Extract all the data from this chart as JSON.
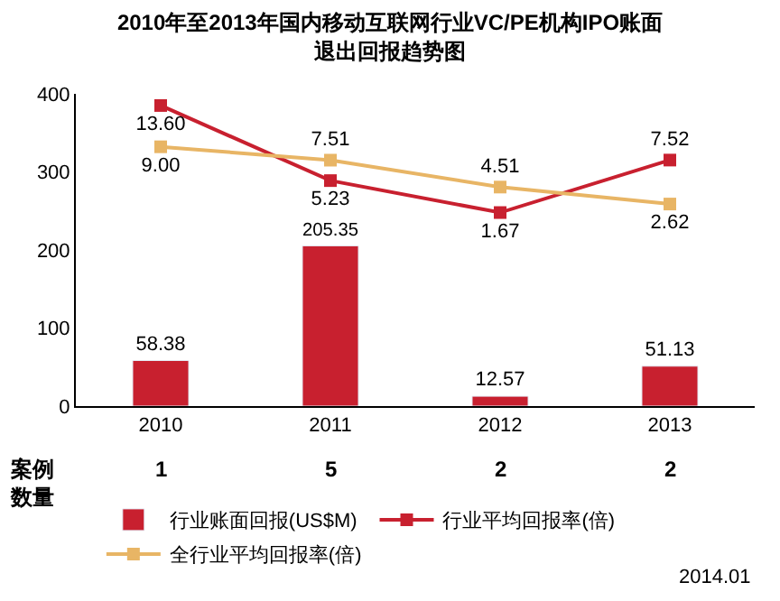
{
  "chart_data": {
    "type": "bar",
    "title": "2010年至2013年国内移动互联网行业VC/PE机构IPO账面退出回报趋势图",
    "categories": [
      "2010",
      "2011",
      "2012",
      "2013"
    ],
    "series": [
      {
        "name": "行业账面回报(US$M)",
        "color": "#c8202f",
        "values": [
          58.38,
          205.35,
          12.57,
          51.13
        ]
      },
      {
        "name": "行业平均回报率(倍)",
        "type": "line",
        "axis": "y2",
        "color": "#c8202f",
        "values": [
          13.6,
          5.23,
          1.67,
          7.52
        ],
        "value_labels": [
          "13.60",
          "5.23",
          "1.67",
          "7.52"
        ]
      },
      {
        "name": "全行业平均回报率(倍)",
        "type": "line",
        "axis": "y2",
        "color": "#e8b565",
        "values": [
          9.0,
          7.51,
          4.51,
          2.62
        ],
        "value_labels": [
          "9.00",
          "7.51",
          "4.51",
          "2.62"
        ]
      }
    ],
    "data_labels": true,
    "marker": "square",
    "ylim": [
      0,
      400
    ],
    "yticks": [
      0,
      100,
      200,
      300,
      400
    ],
    "y2lim": [
      -19.9,
      14.9
    ],
    "tick_labels": "y",
    "legend": "bottom",
    "annotations": [
      "案例数量",
      "1",
      "5",
      "2",
      "2",
      "2014.01"
    ]
  }
}
